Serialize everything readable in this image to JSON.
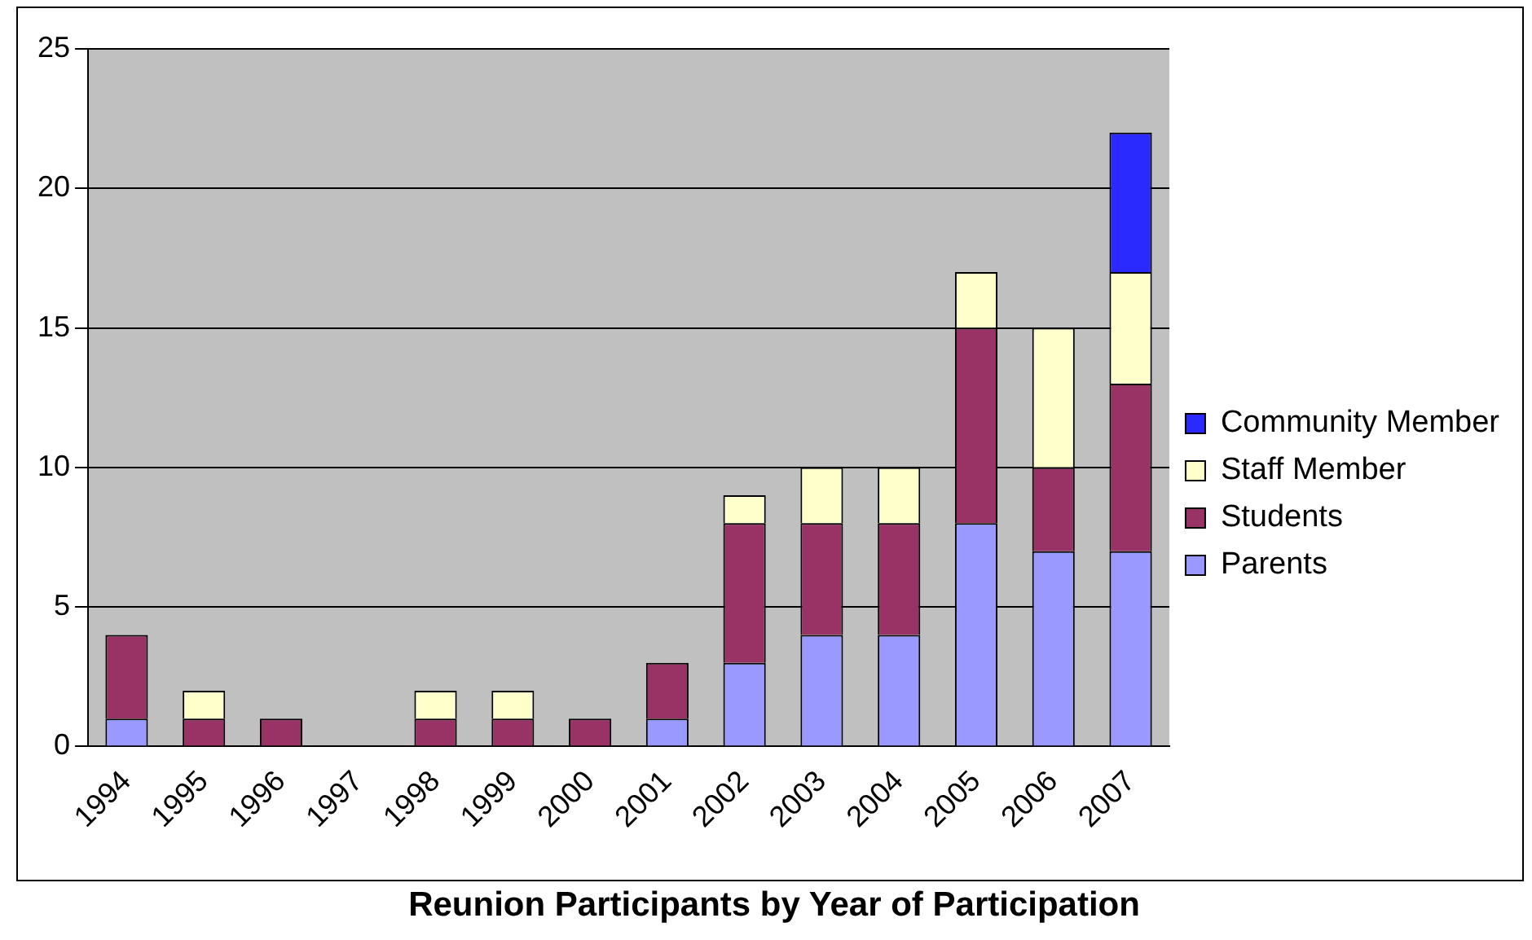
{
  "chart_data": {
    "type": "bar",
    "title": "Reunion Participants by Year of Participation",
    "stacked": true,
    "categories": [
      "1994",
      "1995",
      "1996",
      "1997",
      "1998",
      "1999",
      "2000",
      "2001",
      "2002",
      "2003",
      "2004",
      "2005",
      "2006",
      "2007"
    ],
    "series": [
      {
        "name": "Parents",
        "color": "#9999ff",
        "values": [
          1,
          0,
          0,
          0,
          0,
          0,
          0,
          1,
          3,
          4,
          4,
          8,
          7,
          7
        ]
      },
      {
        "name": "Students",
        "color": "#993366",
        "values": [
          3,
          1,
          1,
          0,
          1,
          1,
          1,
          2,
          5,
          4,
          4,
          7,
          3,
          6
        ]
      },
      {
        "name": "Staff Member",
        "color": "#ffffcc",
        "values": [
          0,
          1,
          0,
          0,
          1,
          1,
          0,
          0,
          1,
          2,
          2,
          2,
          5,
          4
        ]
      },
      {
        "name": "Community Member",
        "color": "#2a2aff",
        "values": [
          0,
          0,
          0,
          0,
          0,
          0,
          0,
          0,
          0,
          0,
          0,
          0,
          0,
          5
        ]
      }
    ],
    "ylim": [
      0,
      25
    ],
    "yticks": [
      0,
      5,
      10,
      15,
      20,
      25
    ],
    "grid": "y",
    "legend": "right"
  }
}
